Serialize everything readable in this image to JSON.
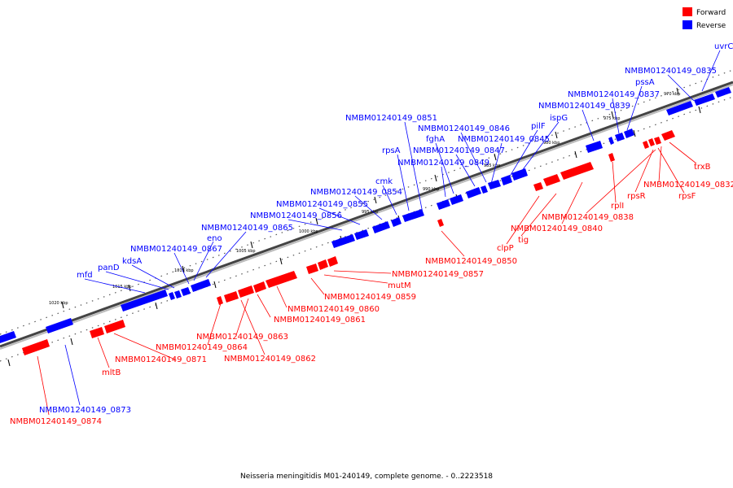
{
  "caption": "Neisseria meningitidis M01-240149, complete genome. - 0..2223518",
  "colors": {
    "forward": "#ff0000",
    "reverse": "#0000ff",
    "backbone": "#666666"
  },
  "legend": [
    {
      "key": "forward",
      "label": "Forward"
    },
    {
      "key": "reverse",
      "label": "Reverse"
    }
  ],
  "ticks": [
    "970 kbp",
    "975 kbp",
    "980 kbp",
    "985 kbp",
    "990 kbp",
    "995 kbp",
    "1000 kbp",
    "1005 kbp",
    "1010 kbp",
    "1015 kbp",
    "1020 kbp"
  ],
  "reverse_labels": [
    "uvrC",
    "NMBM01240149_0835",
    "pssA",
    "NMBM01240149_0837",
    "NMBM01240149_0839",
    "ispG",
    "pilF",
    "NMBM01240149_0845",
    "NMBM01240149_0846",
    "fghA",
    "NMBM01240149_0847",
    "NMBM01240149_0849",
    "NMBM01240149_0851",
    "rpsA",
    "cmk",
    "NMBM01240149_0854",
    "NMBM01240149_0855",
    "NMBM01240149_0856",
    "NMBM01240149_0865",
    "eno",
    "NMBM01240149_0867",
    "kdsA",
    "panD",
    "mfd",
    "NMBM01240149_0873"
  ],
  "forward_labels": [
    "trxB",
    "NMBM01240149_0832",
    "rpsF",
    "rpsR",
    "rplI",
    "NMBM01240149_0838",
    "NMBM01240149_0840",
    "tig",
    "clpP",
    "NMBM01240149_0850",
    "NMBM01240149_0857",
    "mutM",
    "NMBM01240149_0859",
    "NMBM01240149_0860",
    "NMBM01240149_0861",
    "NMBM01240149_0863",
    "NMBM01240149_0864",
    "NMBM01240149_0862",
    "NMBM01240149_0871",
    "mltB",
    "NMBM01240149_0874"
  ]
}
